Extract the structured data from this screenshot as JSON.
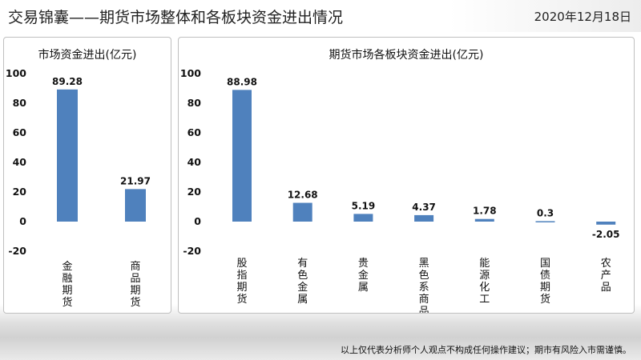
{
  "header": {
    "title": "交易锦囊——期货市场整体和各板块资金进出情况",
    "date": "2020年12月18日"
  },
  "disclaimer": "以上仅代表分析师个人观点不构成任何操作建议；期市有风险入市需谨慎。",
  "colors": {
    "bar": "#4f81bd",
    "panel_border": "#bfbfbf"
  },
  "chart_data": [
    {
      "type": "bar",
      "title": "市场资金进出(亿元)",
      "categories": [
        "金融期货",
        "商品期货"
      ],
      "values": [
        89.28,
        21.97
      ],
      "value_labels": [
        "89.28",
        "21.97"
      ],
      "yticks": [
        "100",
        "80",
        "60",
        "40",
        "20",
        "0",
        "-20"
      ],
      "ylim": [
        -20,
        100
      ],
      "grid": false
    },
    {
      "type": "bar",
      "title": "期货市场各板块资金进出(亿元)",
      "categories": [
        "股指期货",
        "有色金属",
        "贵金属",
        "黑色系商品",
        "能源化工",
        "国债期货",
        "农产品"
      ],
      "values": [
        88.98,
        12.68,
        5.19,
        4.37,
        1.78,
        0.3,
        -2.05
      ],
      "value_labels": [
        "88.98",
        "12.68",
        "5.19",
        "4.37",
        "1.78",
        "0.3",
        "-2.05"
      ],
      "yticks": [
        "100",
        "80",
        "60",
        "40",
        "20",
        "0",
        "-20"
      ],
      "ylim": [
        -20,
        100
      ],
      "grid": false
    }
  ]
}
